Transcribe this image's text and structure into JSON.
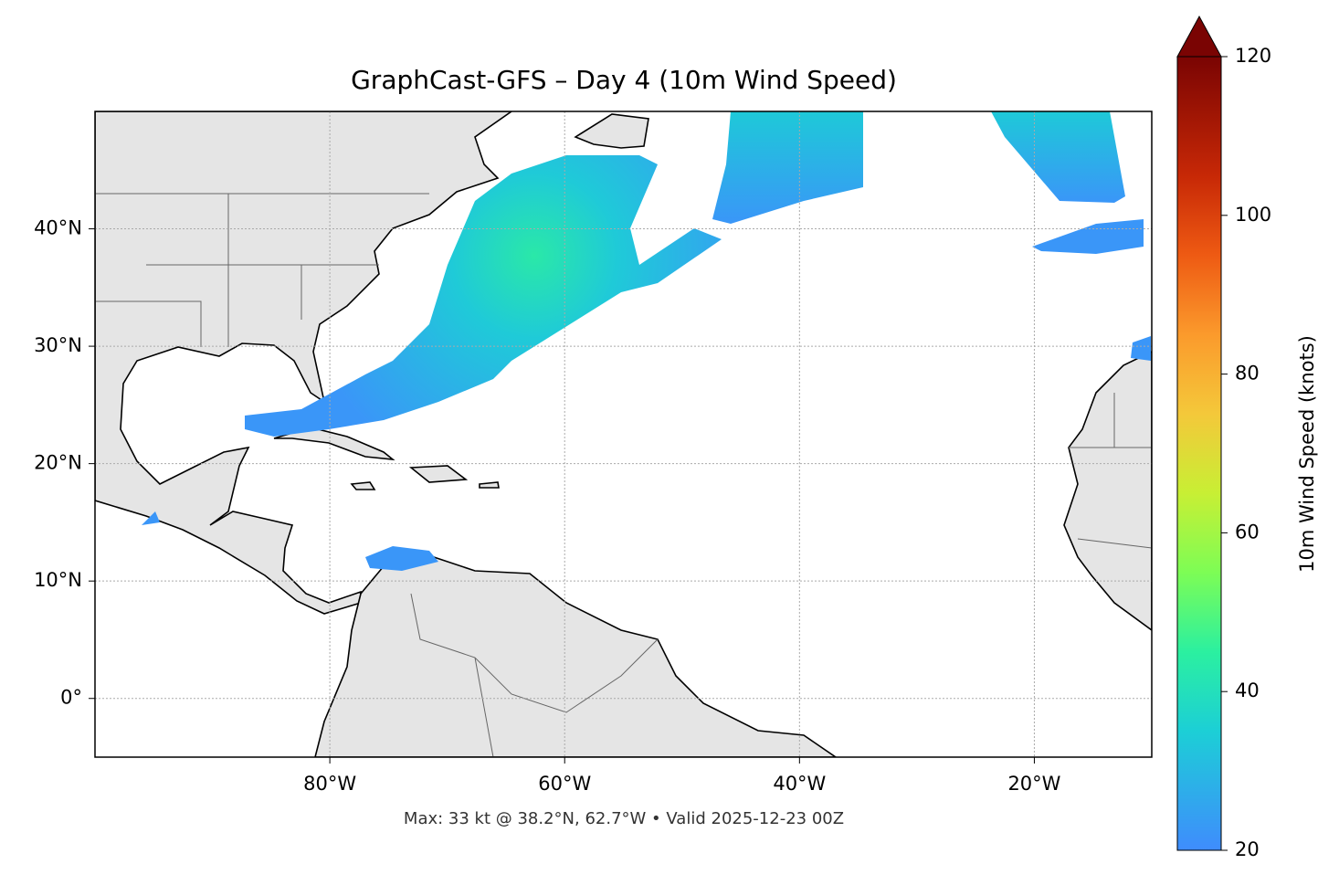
{
  "chart_data": {
    "type": "map",
    "title": "GraphCast-GFS – Day 4 (10m Wind Speed)",
    "footnote": "Max: 33 kt @ 38.2°N, 62.7°W • Valid 2025-12-23 00Z",
    "xlim": [
      -100,
      -10
    ],
    "ylim": [
      -5,
      50
    ],
    "xticks": [
      {
        "value": -80,
        "label": "80°W"
      },
      {
        "value": -60,
        "label": "60°W"
      },
      {
        "value": -40,
        "label": "40°W"
      },
      {
        "value": -20,
        "label": "20°W"
      }
    ],
    "yticks": [
      {
        "value": 0,
        "label": "0°"
      },
      {
        "value": 10,
        "label": "10°N"
      },
      {
        "value": 20,
        "label": "20°N"
      },
      {
        "value": 30,
        "label": "30°N"
      },
      {
        "value": 40,
        "label": "40°N"
      }
    ],
    "grid": true,
    "colorbar": {
      "label": "10m Wind Speed (knots)",
      "lim": [
        20,
        120
      ],
      "ticks": [
        20,
        40,
        60,
        80,
        100,
        120
      ]
    }
  }
}
